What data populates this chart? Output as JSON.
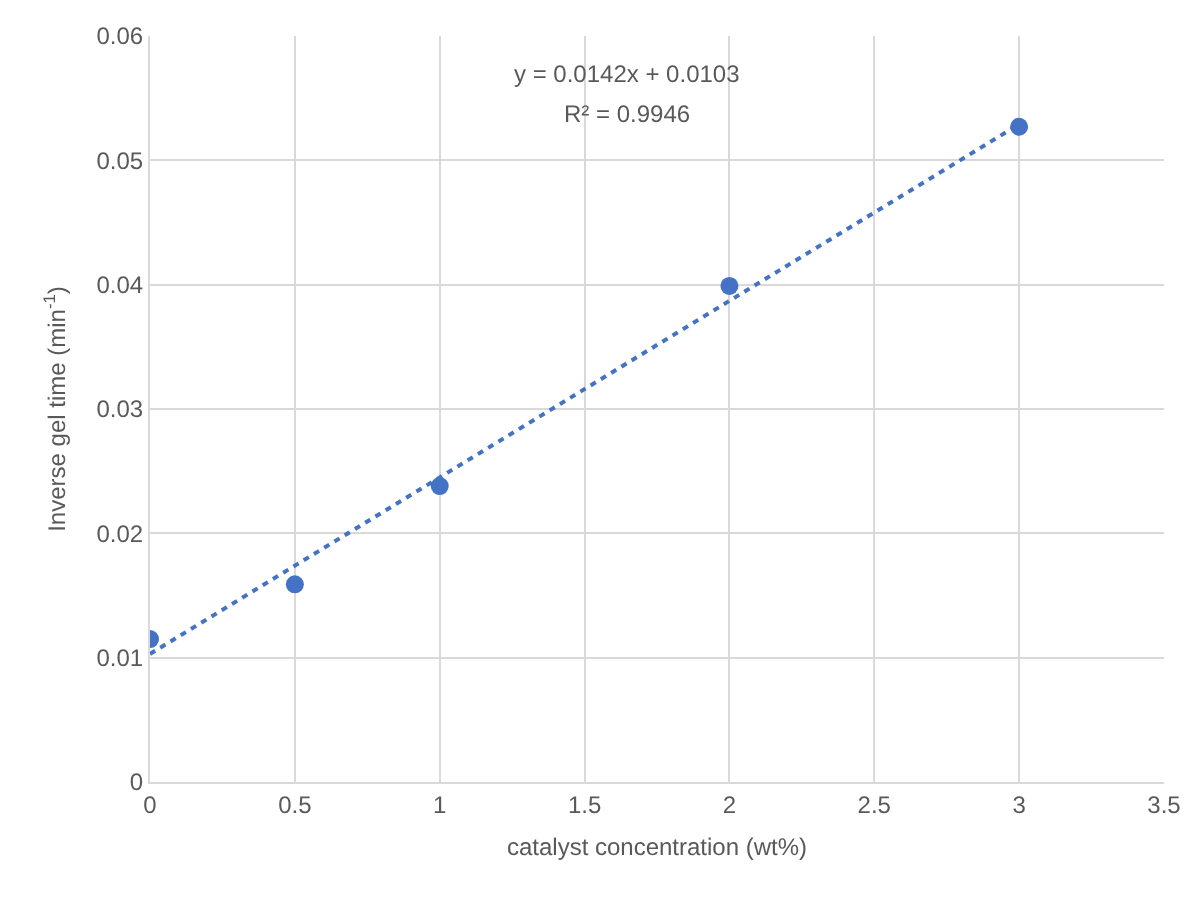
{
  "chart_data": {
    "type": "scatter",
    "xlabel": "catalyst concentration (wt%)",
    "ylabel": "Inverse gel time (min$^{-1}$)",
    "xlim": [
      0,
      3.5
    ],
    "xticks": [
      0,
      0.5,
      1,
      1.5,
      2,
      2.5,
      3,
      3.5
    ],
    "ylim": [
      0,
      0.06
    ],
    "yticks": [
      0,
      0.01,
      0.02,
      0.03,
      0.04,
      0.05,
      0.06
    ],
    "grid": true,
    "marker": "circle",
    "series": [
      {
        "type": "scatter",
        "color": "#4472c4",
        "x": [
          0,
          0.5,
          1,
          2,
          3
        ],
        "values": [
          0.0115,
          0.0159,
          0.0238,
          0.0399,
          0.0527
        ]
      },
      {
        "type": "line",
        "color": "#4472c4",
        "line_style": "dotted",
        "marker": "none",
        "x": [
          0,
          3
        ],
        "values": [
          0.0103,
          0.0529
        ]
      }
    ],
    "annotations": [
      "y = 0.0142x + 0.0103",
      "R² = 0.9946"
    ]
  }
}
